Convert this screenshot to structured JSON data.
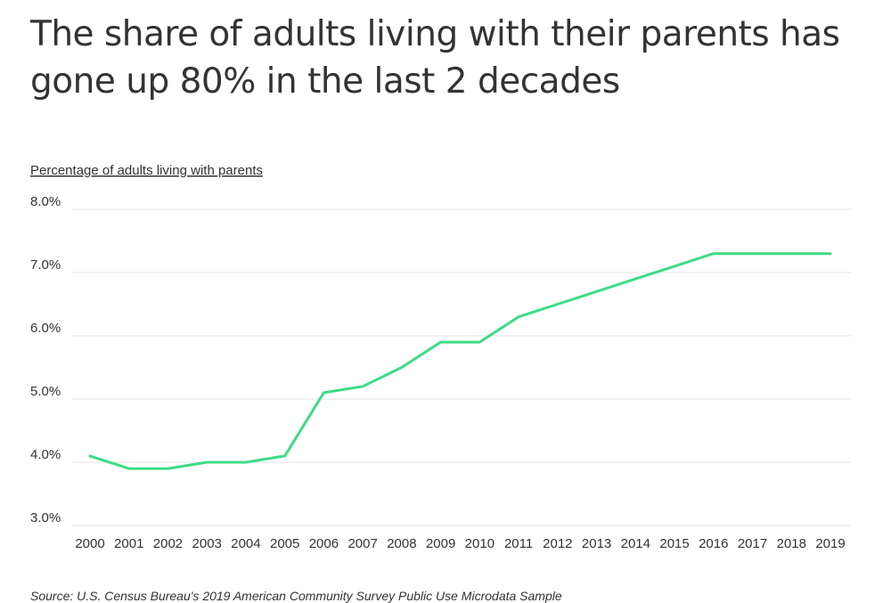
{
  "title": "The share of adults living with their parents has gone up 80% in the last 2 decades",
  "source": "Source:  U.S. Census Bureau's 2019 American Community Survey Public Use Microdata Sample",
  "chart_data": {
    "type": "line",
    "title": "The share of adults living with their parents has gone up 80% in the last 2 decades",
    "ylabel": "Percentage of adults living with parents",
    "xlabel": "",
    "ylim": [
      3.0,
      8.0
    ],
    "yticks": [
      8.0,
      7.0,
      6.0,
      5.0,
      4.0,
      3.0
    ],
    "ytick_labels": [
      "8.0%",
      "7.0%",
      "6.0%",
      "5.0%",
      "4.0%",
      "3.0%"
    ],
    "grid": "horizontal",
    "line_color": "#3ddc84",
    "x": [
      "2000",
      "2001",
      "2002",
      "2003",
      "2004",
      "2005",
      "2006",
      "2007",
      "2008",
      "2009",
      "2010",
      "2011",
      "2012",
      "2013",
      "2014",
      "2015",
      "2016",
      "2017",
      "2018",
      "2019"
    ],
    "values": [
      4.1,
      3.9,
      3.9,
      4.0,
      4.0,
      4.1,
      5.1,
      5.2,
      5.5,
      5.9,
      5.9,
      6.3,
      6.5,
      6.7,
      6.9,
      7.1,
      7.3,
      7.3,
      7.3,
      7.3
    ]
  }
}
